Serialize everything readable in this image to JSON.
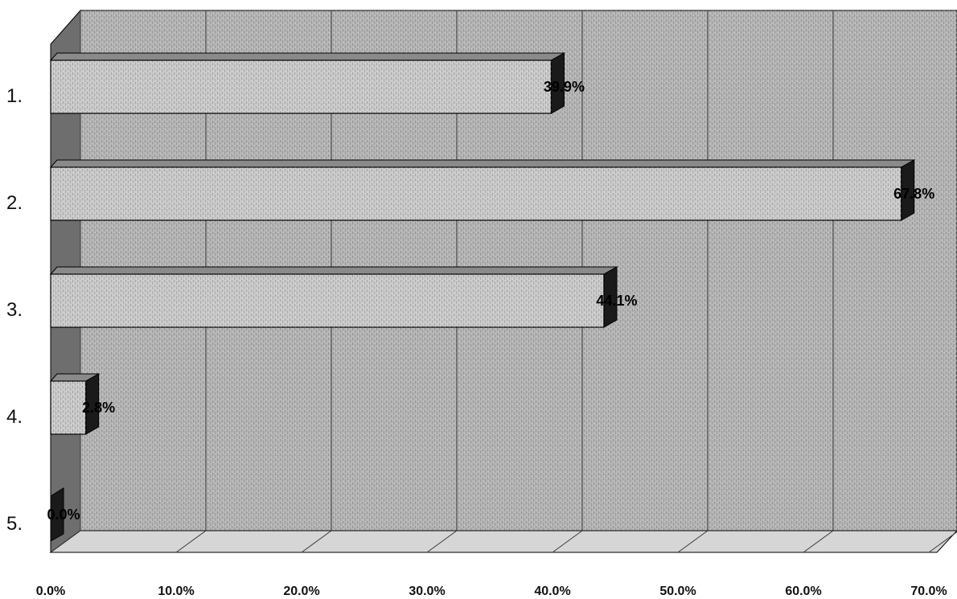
{
  "chart_data": {
    "type": "bar",
    "orientation": "horizontal",
    "style": "3d",
    "categories": [
      "1.",
      "2.",
      "3.",
      "4.",
      "5."
    ],
    "values": [
      39.9,
      67.8,
      44.1,
      2.8,
      0.0
    ],
    "data_labels": [
      "39.9%",
      "67.8%",
      "44.1%",
      "2.8%",
      "0.0%"
    ],
    "x_ticks": [
      "0.0%",
      "10.0%",
      "20.0%",
      "30.0%",
      "40.0%",
      "50.0%",
      "60.0%",
      "70.0%"
    ],
    "xlim": [
      0,
      70
    ],
    "title": "",
    "xlabel": "",
    "ylabel": "",
    "grid": true,
    "legend": "none",
    "colors": {
      "bar_front": "#c9c9c9",
      "bar_top": "#8a8a8a",
      "bar_side": "#1a1a1a",
      "wall": "#b4b4b4",
      "wall_left": "#6e6e6e",
      "floor": "#d6d6d6",
      "gridline": "#3a3a3a"
    }
  }
}
